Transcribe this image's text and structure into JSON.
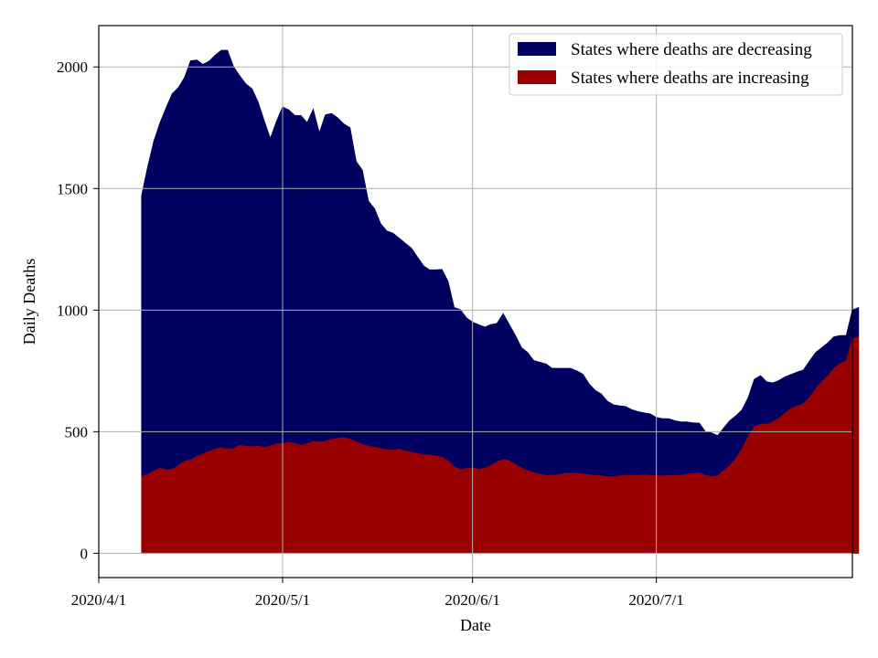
{
  "chart_data": {
    "type": "area",
    "stacked": true,
    "title": "",
    "xlabel": "Date",
    "ylabel": "Daily Deaths",
    "x_start": "2020-04-08",
    "x_end": "2020-07-28",
    "xlim": [
      "2020-04-01",
      "2020-08-02"
    ],
    "ylim": [
      -100,
      2170
    ],
    "x_ticks": [
      {
        "label": "2020/4/1",
        "date": "2020-04-01"
      },
      {
        "label": "2020/5/1",
        "date": "2020-05-01"
      },
      {
        "label": "2020/6/1",
        "date": "2020-06-01"
      },
      {
        "label": "2020/7/1",
        "date": "2020-07-01"
      }
    ],
    "y_ticks": [
      0,
      500,
      1000,
      1500,
      2000
    ],
    "grid": true,
    "legend_position": "top-right",
    "series": [
      {
        "name": "States where deaths are increasing",
        "color": "#990000",
        "values": [
          315,
          325,
          338,
          350,
          342,
          345,
          360,
          378,
          383,
          398,
          408,
          418,
          428,
          433,
          428,
          430,
          443,
          440,
          438,
          440,
          435,
          440,
          450,
          450,
          455,
          452,
          443,
          450,
          460,
          458,
          460,
          468,
          472,
          475,
          468,
          458,
          448,
          440,
          435,
          430,
          425,
          423,
          428,
          420,
          415,
          410,
          405,
          403,
          400,
          395,
          380,
          355,
          345,
          348,
          350,
          345,
          350,
          360,
          375,
          385,
          380,
          365,
          350,
          340,
          330,
          325,
          320,
          320,
          322,
          328,
          330,
          328,
          326,
          322,
          320,
          318,
          315,
          315,
          318,
          318,
          320,
          320,
          322,
          320,
          318,
          318,
          318,
          320,
          320,
          325,
          328,
          330,
          320,
          315,
          318,
          340,
          360,
          390,
          430,
          480,
          520,
          530,
          530,
          540,
          555,
          575,
          595,
          605,
          615,
          640,
          675,
          705,
          730,
          760,
          780,
          790,
          880,
          890
        ]
      },
      {
        "name": "States where deaths are decreasing",
        "color": "#000060",
        "values": [
          1155,
          1265,
          1357,
          1420,
          1490,
          1545,
          1555,
          1578,
          1642,
          1630,
          1602,
          1605,
          1620,
          1635,
          1640,
          1570,
          1520,
          1490,
          1472,
          1415,
          1343,
          1265,
          1325,
          1385,
          1368,
          1348,
          1357,
          1320,
          1365,
          1270,
          1343,
          1340,
          1318,
          1290,
          1282,
          1153,
          1128,
          1008,
          982,
          925,
          900,
          893,
          868,
          855,
          840,
          808,
          777,
          762,
          765,
          772,
          738,
          655,
          657,
          620,
          600,
          595,
          580,
          580,
          570,
          600,
          560,
          530,
          495,
          485,
          462,
          460,
          458,
          440,
          438,
          432,
          430,
          422,
          410,
          375,
          350,
          337,
          310,
          295,
          288,
          285,
          270,
          262,
          255,
          253,
          240,
          235,
          235,
          225,
          220,
          215,
          208,
          205,
          180,
          180,
          165,
          175,
          185,
          175,
          160,
          160,
          195,
          200,
          175,
          160,
          155,
          150,
          140,
          140,
          138,
          150,
          150,
          140,
          135,
          130,
          115,
          105,
          120,
          120
        ]
      }
    ]
  }
}
